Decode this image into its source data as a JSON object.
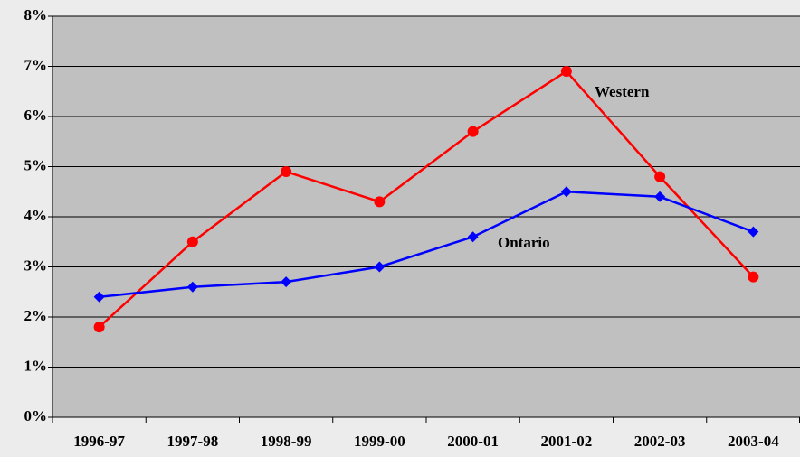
{
  "chart_data": {
    "type": "line",
    "categories": [
      "1996-97",
      "1997-98",
      "1998-99",
      "1999-00",
      "2000-01",
      "2001-02",
      "2002-03",
      "2003-04"
    ],
    "series": [
      {
        "name": "Western",
        "color": "#ff0000",
        "marker": "circle",
        "values": [
          1.8,
          3.5,
          4.9,
          4.3,
          5.7,
          6.9,
          4.8,
          2.8
        ]
      },
      {
        "name": "Ontario",
        "color": "#0000ff",
        "marker": "diamond",
        "values": [
          2.4,
          2.6,
          2.7,
          3.0,
          3.6,
          4.5,
          4.4,
          3.7
        ]
      }
    ],
    "ylim": [
      0,
      8
    ],
    "yticks": [
      {
        "value": 0,
        "label": "0%"
      },
      {
        "value": 1,
        "label": "1%"
      },
      {
        "value": 2,
        "label": "2%"
      },
      {
        "value": 3,
        "label": "3%"
      },
      {
        "value": 4,
        "label": "4%"
      },
      {
        "value": 5,
        "label": "5%"
      },
      {
        "value": 6,
        "label": "6%"
      },
      {
        "value": 7,
        "label": "7%"
      },
      {
        "value": 8,
        "label": "8%"
      }
    ],
    "grid": true
  }
}
